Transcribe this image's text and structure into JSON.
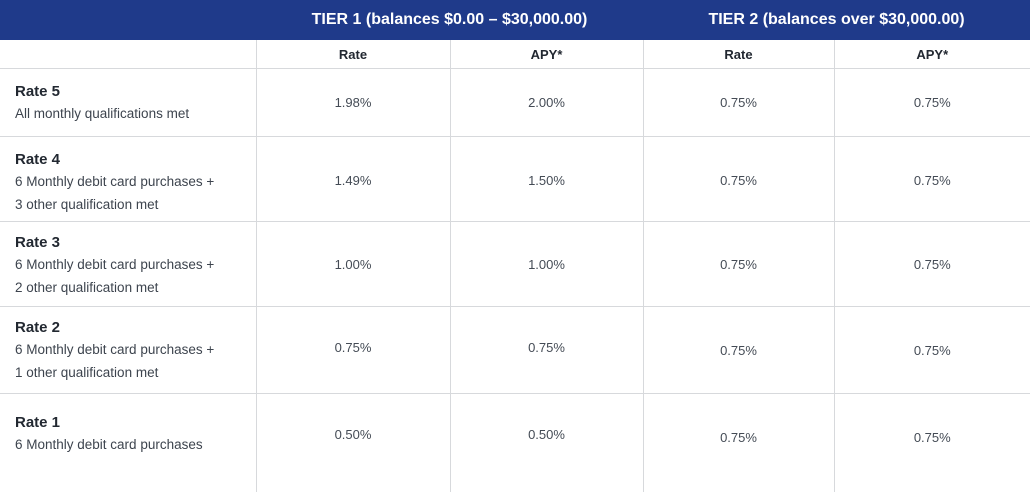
{
  "header": {
    "tier1": "TIER 1 (balances $0.00 – $30,000.00)",
    "tier2": "TIER 2 (balances over $30,000.00)",
    "sub": [
      "Rate",
      "APY*",
      "Rate",
      "APY*"
    ]
  },
  "rows": [
    {
      "name": "Rate 5",
      "desc": [
        "All monthly qualifications met"
      ],
      "values": [
        "1.98%",
        "2.00%",
        "0.75%",
        "0.75%"
      ]
    },
    {
      "name": "Rate 4",
      "desc": [
        "6 Monthly debit card purchases +",
        "3 other qualification met"
      ],
      "values": [
        "1.49%",
        "1.50%",
        "0.75%",
        "0.75%"
      ]
    },
    {
      "name": "Rate 3",
      "desc": [
        "6 Monthly debit card purchases +",
        "2 other qualification met"
      ],
      "values": [
        "1.00%",
        "1.00%",
        "0.75%",
        "0.75%"
      ]
    },
    {
      "name": "Rate 2",
      "desc": [
        "6 Monthly debit card purchases +",
        "1 other qualification met"
      ],
      "values": [
        "0.75%",
        "0.75%",
        "0.75%",
        "0.75%"
      ]
    },
    {
      "name": "Rate 1",
      "desc": [
        "6 Monthly debit card purchases"
      ],
      "values": [
        "0.50%",
        "0.50%",
        "0.75%",
        "0.75%"
      ]
    }
  ],
  "colors": {
    "header_bg": "#1f3a8a",
    "grid": "#d7d9dc",
    "text": "#222831"
  }
}
